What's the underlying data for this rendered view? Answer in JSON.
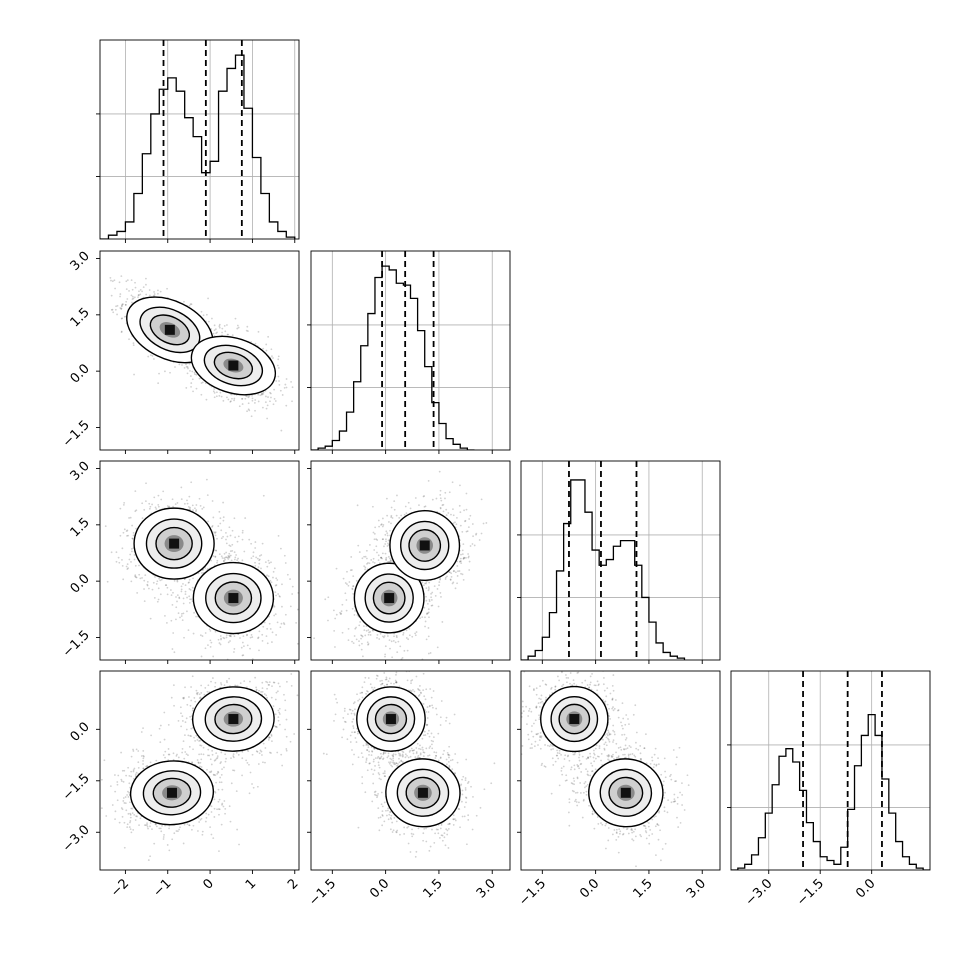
{
  "chart_data": {
    "type": "corner",
    "variables": 4,
    "quantiles": [
      0.16,
      0.5,
      0.84
    ],
    "grid": true,
    "histograms": [
      {
        "var": 0,
        "xlim": [
          -2.6,
          2.1
        ],
        "ylim": [
          0,
          1.05
        ],
        "x_ticks": [
          -2,
          -1,
          0,
          1,
          2
        ],
        "x_tick_labels": [
          "−2",
          "−1",
          "0",
          "1",
          "2"
        ],
        "y_grid": [
          0.33,
          0.66
        ],
        "bins": [
          -2.6,
          -2.4,
          -2.2,
          -2.0,
          -1.8,
          -1.6,
          -1.4,
          -1.2,
          -1.0,
          -0.8,
          -0.6,
          -0.4,
          -0.2,
          0.0,
          0.2,
          0.4,
          0.6,
          0.8,
          1.0,
          1.2,
          1.4,
          1.6,
          1.8,
          2.0
        ],
        "counts": [
          0.0,
          0.02,
          0.04,
          0.09,
          0.24,
          0.45,
          0.66,
          0.79,
          0.85,
          0.78,
          0.64,
          0.54,
          0.35,
          0.41,
          0.78,
          0.9,
          0.97,
          0.69,
          0.43,
          0.24,
          0.09,
          0.04,
          0.01
        ],
        "quantile_lines": [
          -1.1,
          -0.1,
          0.75
        ]
      },
      {
        "var": 1,
        "xlim": [
          -2.1,
          3.5
        ],
        "ylim": [
          0,
          1.05
        ],
        "x_ticks": [
          -1.5,
          0.0,
          1.5,
          3.0
        ],
        "x_tick_labels": [
          "−1.5",
          "0.0",
          "1.5",
          "3.0"
        ],
        "y_grid": [
          0.33,
          0.66
        ],
        "bins": [
          -2.1,
          -1.9,
          -1.7,
          -1.5,
          -1.3,
          -1.1,
          -0.9,
          -0.7,
          -0.5,
          -0.3,
          -0.1,
          0.1,
          0.3,
          0.5,
          0.7,
          0.9,
          1.1,
          1.3,
          1.5,
          1.7,
          1.9,
          2.1,
          2.3,
          2.5
        ],
        "counts": [
          0.0,
          0.01,
          0.02,
          0.05,
          0.1,
          0.2,
          0.36,
          0.55,
          0.72,
          0.91,
          0.97,
          0.95,
          0.88,
          0.87,
          0.8,
          0.63,
          0.44,
          0.25,
          0.14,
          0.06,
          0.03,
          0.01,
          0.0
        ],
        "quantile_lines": [
          -0.1,
          0.55,
          1.35
        ]
      },
      {
        "var": 2,
        "xlim": [
          -2.1,
          3.5
        ],
        "ylim": [
          0,
          1.05
        ],
        "x_ticks": [
          -1.5,
          0.0,
          1.5,
          3.0
        ],
        "x_tick_labels": [
          "−1.5",
          "0.0",
          "1.5",
          "3.0"
        ],
        "y_grid": [
          0.33,
          0.66
        ],
        "bins": [
          -2.1,
          -1.9,
          -1.7,
          -1.5,
          -1.3,
          -1.1,
          -0.9,
          -0.7,
          -0.5,
          -0.3,
          -0.1,
          0.1,
          0.3,
          0.5,
          0.7,
          0.9,
          1.1,
          1.3,
          1.5,
          1.7,
          1.9,
          2.1,
          2.3,
          2.5
        ],
        "counts": [
          0.0,
          0.02,
          0.05,
          0.12,
          0.25,
          0.47,
          0.72,
          0.95,
          0.95,
          0.78,
          0.58,
          0.5,
          0.53,
          0.6,
          0.63,
          0.63,
          0.5,
          0.33,
          0.2,
          0.09,
          0.04,
          0.02,
          0.01
        ],
        "quantile_lines": [
          -0.75,
          0.15,
          1.15
        ]
      },
      {
        "var": 3,
        "xlim": [
          -4.1,
          1.7
        ],
        "ylim": [
          0,
          1.05
        ],
        "x_ticks": [
          -3.0,
          -1.5,
          0.0
        ],
        "x_tick_labels": [
          "−3.0",
          "−1.5",
          "0.0"
        ],
        "y_grid": [
          0.33,
          0.66
        ],
        "bins": [
          -4.1,
          -3.9,
          -3.7,
          -3.5,
          -3.3,
          -3.1,
          -2.9,
          -2.7,
          -2.5,
          -2.3,
          -2.1,
          -1.9,
          -1.7,
          -1.5,
          -1.3,
          -1.1,
          -0.9,
          -0.7,
          -0.5,
          -0.3,
          -0.1,
          0.1,
          0.3,
          0.5,
          0.7,
          0.9,
          1.1,
          1.3,
          1.5,
          1.7
        ],
        "counts": [
          0.0,
          0.01,
          0.03,
          0.08,
          0.17,
          0.3,
          0.45,
          0.6,
          0.64,
          0.57,
          0.42,
          0.25,
          0.15,
          0.07,
          0.05,
          0.03,
          0.12,
          0.32,
          0.55,
          0.71,
          0.82,
          0.71,
          0.48,
          0.3,
          0.15,
          0.07,
          0.03,
          0.01,
          0.0
        ],
        "quantile_lines": [
          -2.0,
          -0.7,
          0.3
        ]
      }
    ],
    "pairs": [
      {
        "x": 0,
        "y": 1,
        "xlim": [
          -2.6,
          2.1
        ],
        "ylim": [
          -2.1,
          3.2
        ],
        "y_ticks": [
          -1.5,
          0.0,
          1.5,
          3.0
        ],
        "y_tick_labels": [
          "−1.5",
          "0.0",
          "1.5",
          "3.0"
        ],
        "clusters": [
          {
            "mean": [
              -0.95,
              1.1
            ],
            "sd": [
              0.42,
              0.42
            ],
            "rho": -0.65,
            "weight": 1.0
          },
          {
            "mean": [
              0.55,
              0.15
            ],
            "sd": [
              0.42,
              0.38
            ],
            "rho": -0.45,
            "weight": 1.0
          }
        ]
      },
      {
        "x": 0,
        "y": 2,
        "xlim": [
          -2.6,
          2.1
        ],
        "ylim": [
          -2.1,
          3.2
        ],
        "y_ticks": [
          -1.5,
          0.0,
          1.5,
          3.0
        ],
        "y_tick_labels": [
          "−1.5",
          "0.0",
          "1.5",
          "3.0"
        ],
        "clusters": [
          {
            "mean": [
              -0.85,
              1.0
            ],
            "sd": [
              0.45,
              0.45
            ],
            "rho": 0.0,
            "weight": 1.0
          },
          {
            "mean": [
              0.55,
              -0.45
            ],
            "sd": [
              0.45,
              0.45
            ],
            "rho": 0.0,
            "weight": 1.0
          }
        ]
      },
      {
        "x": 1,
        "y": 2,
        "xlim": [
          -2.1,
          3.5
        ],
        "ylim": [
          -2.1,
          3.2
        ],
        "clusters": [
          {
            "mean": [
              0.1,
              -0.45
            ],
            "sd": [
              0.45,
              0.45
            ],
            "rho": 0.1,
            "weight": 1.0
          },
          {
            "mean": [
              1.1,
              0.95
            ],
            "sd": [
              0.45,
              0.45
            ],
            "rho": 0.1,
            "weight": 1.0
          }
        ]
      },
      {
        "x": 0,
        "y": 3,
        "xlim": [
          -2.6,
          2.1
        ],
        "ylim": [
          -4.1,
          1.7
        ],
        "y_ticks": [
          -3.0,
          -1.5,
          0.0
        ],
        "y_tick_labels": [
          "−3.0",
          "−1.5",
          "0.0"
        ],
        "clusters": [
          {
            "mean": [
              0.55,
              0.3
            ],
            "sd": [
              0.45,
              0.45
            ],
            "rho": 0.05,
            "weight": 1.0
          },
          {
            "mean": [
              -0.9,
              -1.85
            ],
            "sd": [
              0.45,
              0.45
            ],
            "rho": 0.1,
            "weight": 1.0
          }
        ]
      },
      {
        "x": 1,
        "y": 3,
        "xlim": [
          -2.1,
          3.5
        ],
        "ylim": [
          -4.1,
          1.7
        ],
        "clusters": [
          {
            "mean": [
              0.15,
              0.3
            ],
            "sd": [
              0.45,
              0.45
            ],
            "rho": 0.05,
            "weight": 1.0
          },
          {
            "mean": [
              1.05,
              -1.85
            ],
            "sd": [
              0.48,
              0.48
            ],
            "rho": -0.1,
            "weight": 1.0
          }
        ]
      },
      {
        "x": 2,
        "y": 3,
        "xlim": [
          -2.1,
          3.5
        ],
        "ylim": [
          -4.1,
          1.7
        ],
        "clusters": [
          {
            "mean": [
              -0.6,
              0.3
            ],
            "sd": [
              0.45,
              0.45
            ],
            "rho": 0.0,
            "weight": 1.0
          },
          {
            "mean": [
              0.85,
              -1.85
            ],
            "sd": [
              0.48,
              0.48
            ],
            "rho": -0.1,
            "weight": 1.0
          }
        ]
      }
    ]
  }
}
